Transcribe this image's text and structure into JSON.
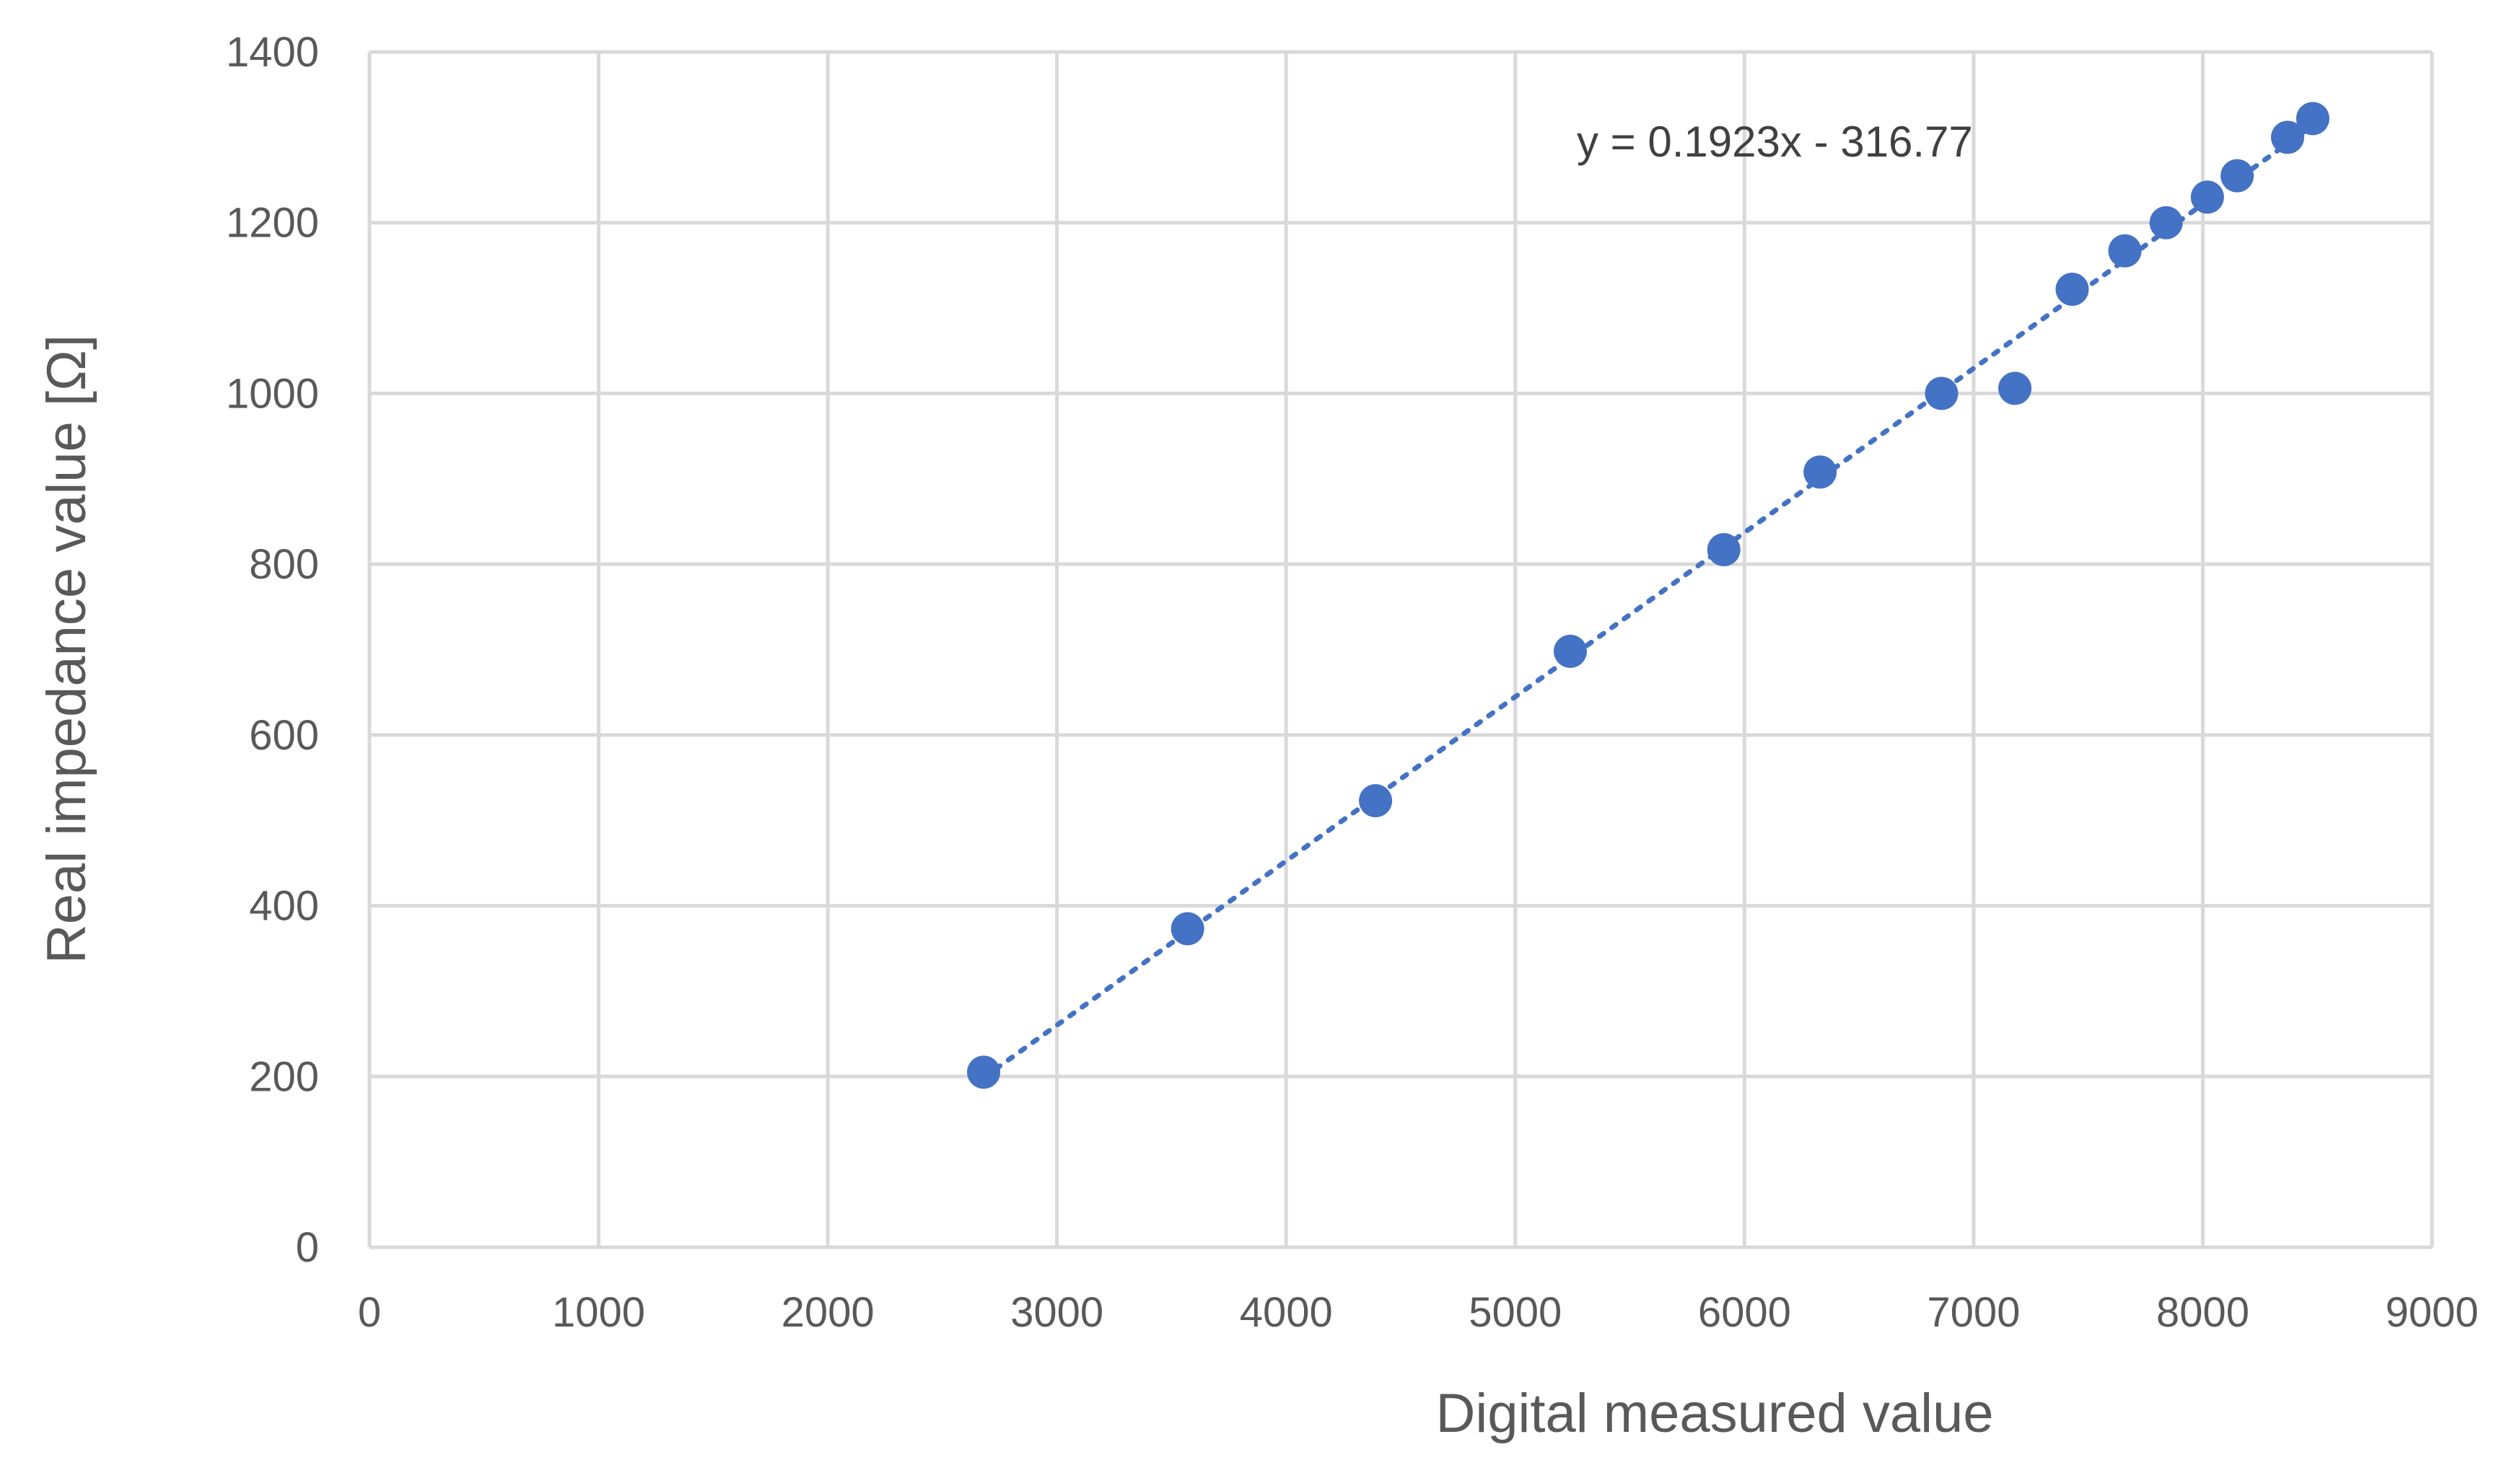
{
  "chart_data": {
    "type": "scatter",
    "xlabel": "Digital measured value",
    "ylabel": "Real impedance value [Ω]",
    "xlim": [
      0,
      9000
    ],
    "ylim": [
      0,
      1400
    ],
    "x_ticks": [
      0,
      1000,
      2000,
      3000,
      4000,
      5000,
      6000,
      7000,
      8000,
      9000
    ],
    "y_ticks": [
      0,
      200,
      400,
      600,
      800,
      1000,
      1200,
      1400
    ],
    "grid": true,
    "legend": "none",
    "series": [
      {
        "color": "#4472c4",
        "points": [
          {
            "x": 2680,
            "y": 205
          },
          {
            "x": 3570,
            "y": 373
          },
          {
            "x": 4390,
            "y": 523
          },
          {
            "x": 5240,
            "y": 698
          },
          {
            "x": 5910,
            "y": 817
          },
          {
            "x": 6330,
            "y": 908
          },
          {
            "x": 6860,
            "y": 1000
          },
          {
            "x": 7180,
            "y": 1006
          },
          {
            "x": 7430,
            "y": 1122
          },
          {
            "x": 7660,
            "y": 1167
          },
          {
            "x": 7840,
            "y": 1200
          },
          {
            "x": 8020,
            "y": 1230
          },
          {
            "x": 8150,
            "y": 1255
          },
          {
            "x": 8370,
            "y": 1300
          },
          {
            "x": 8480,
            "y": 1322
          }
        ],
        "trendline": {
          "type": "linear",
          "style": "dotted",
          "slope": 0.1923,
          "intercept": -316.77,
          "equation_label": "y = 0.1923x - 316.77"
        }
      }
    ]
  }
}
